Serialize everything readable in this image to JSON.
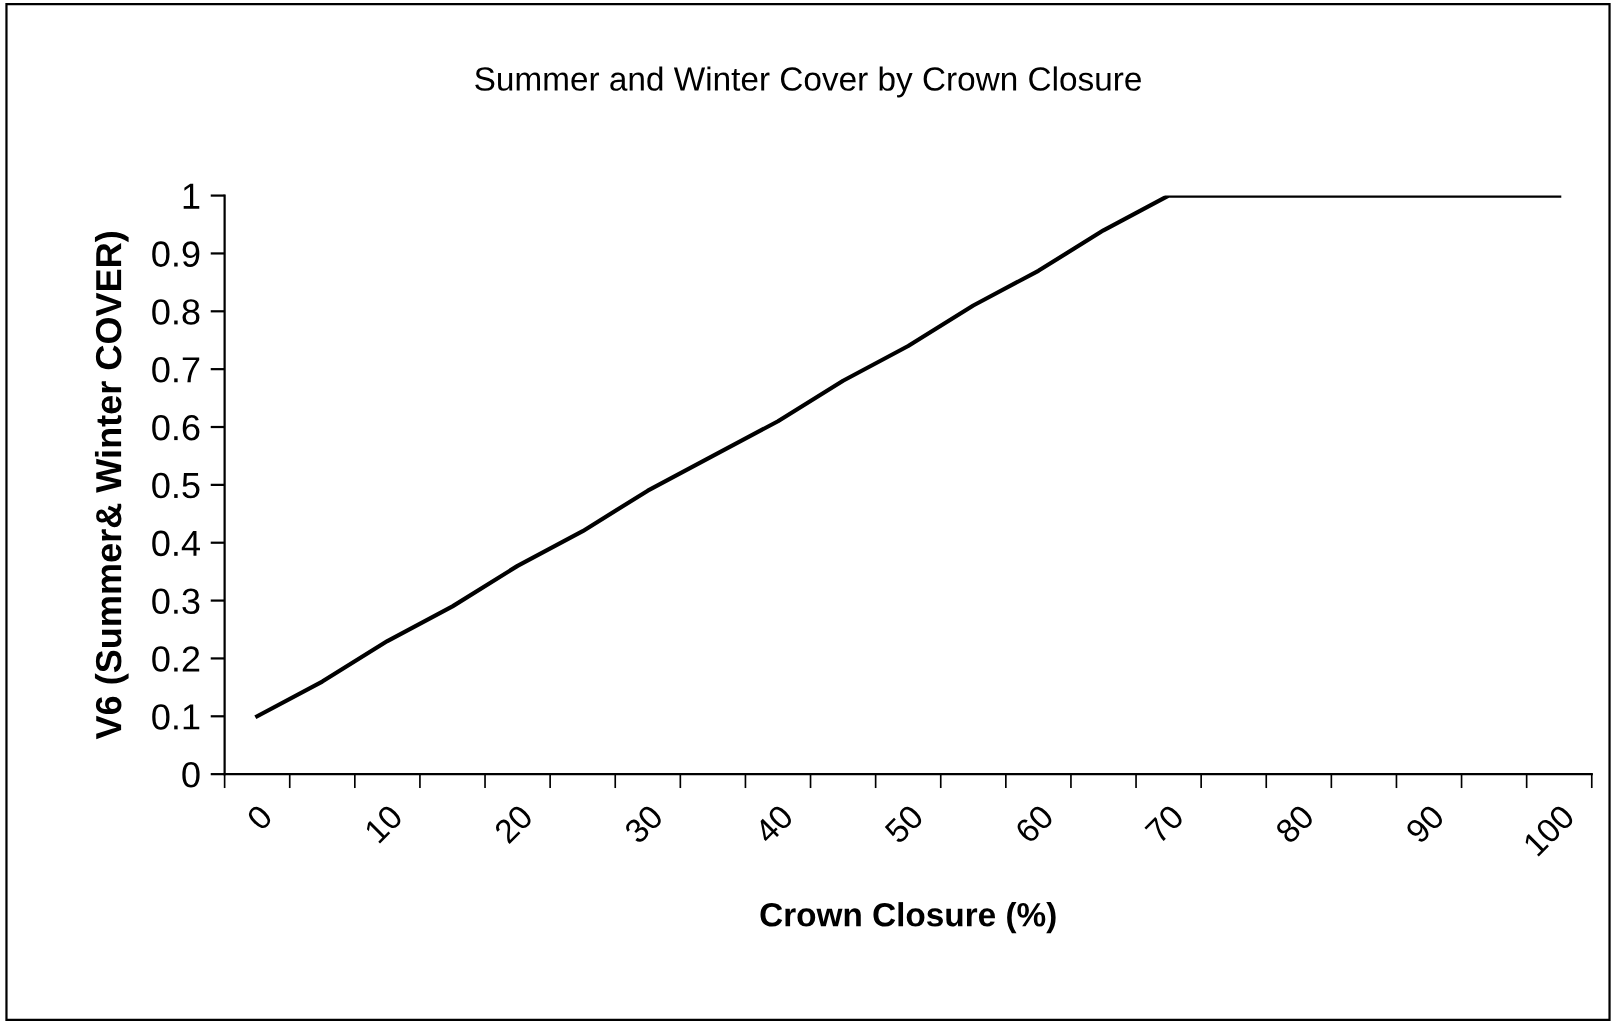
{
  "chart_data": {
    "type": "line",
    "title": "Summer and Winter Cover by Crown Closure",
    "xlabel": "Crown Closure (%)",
    "ylabel": "V6 (Summer& Winter COVER)",
    "categories": [
      "0",
      null,
      "10",
      null,
      "20",
      null,
      "30",
      null,
      "40",
      null,
      "50",
      null,
      "60",
      null,
      "70",
      null,
      "80",
      null,
      "90",
      null,
      "100"
    ],
    "series": [
      {
        "color": "#000000",
        "values": [
          0.1,
          0.16,
          0.23,
          0.29,
          0.36,
          0.42,
          0.49,
          0.55,
          0.61,
          0.68,
          0.74,
          0.81,
          0.87,
          0.94,
          1.0,
          1.0,
          1.0,
          1.0,
          1.0,
          1.0,
          1.0
        ]
      }
    ],
    "ylim": [
      0,
      1
    ],
    "yticks": [
      0,
      0.1,
      0.2,
      0.3,
      0.4,
      0.5,
      0.6,
      0.7,
      0.8,
      0.9,
      1
    ],
    "grid": false,
    "marker": "none",
    "line_style": "solid"
  }
}
